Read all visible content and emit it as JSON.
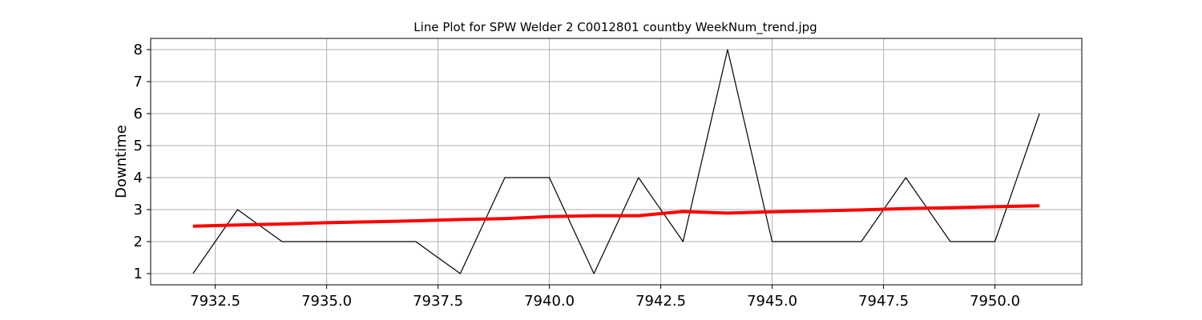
{
  "chart_data": {
    "type": "line",
    "title": "Line Plot for SPW Welder 2 C0012801 countby WeekNum_trend.jpg",
    "xlabel": "",
    "ylabel": "Downtime",
    "xlim": [
      7931.05,
      7951.95
    ],
    "ylim": [
      0.65,
      8.35
    ],
    "x_ticks": [
      7932.5,
      7935.0,
      7937.5,
      7940.0,
      7942.5,
      7945.0,
      7947.5,
      7950.0
    ],
    "x_tick_labels": [
      "7932.5",
      "7935.0",
      "7937.5",
      "7940.0",
      "7942.5",
      "7945.0",
      "7947.5",
      "7950.0"
    ],
    "y_ticks": [
      1,
      2,
      3,
      4,
      5,
      6,
      7,
      8
    ],
    "y_tick_labels": [
      "1",
      "2",
      "3",
      "4",
      "5",
      "6",
      "7",
      "8"
    ],
    "grid": true,
    "series": [
      {
        "color": "#000000",
        "x": [
          7932,
          7933,
          7934,
          7935,
          7936,
          7937,
          7938,
          7939,
          7940,
          7941,
          7942,
          7943,
          7944,
          7945,
          7946,
          7947,
          7948,
          7949,
          7950,
          7951
        ],
        "y": [
          1,
          3,
          2,
          2,
          2,
          2,
          1,
          4,
          4,
          1,
          4,
          2,
          8,
          2,
          2,
          2,
          4,
          2,
          2,
          6
        ]
      },
      {
        "color": "#ff0000",
        "x": [
          7932,
          7933,
          7934,
          7935,
          7936,
          7937,
          7938,
          7939,
          7940,
          7941,
          7942,
          7943,
          7944,
          7945,
          7946,
          7947,
          7948,
          7949,
          7950,
          7951
        ],
        "y": [
          2.48,
          2.52,
          2.55,
          2.59,
          2.62,
          2.65,
          2.69,
          2.72,
          2.78,
          2.81,
          2.81,
          2.94,
          2.89,
          2.93,
          2.96,
          2.99,
          3.03,
          3.06,
          3.09,
          3.12
        ]
      }
    ]
  }
}
